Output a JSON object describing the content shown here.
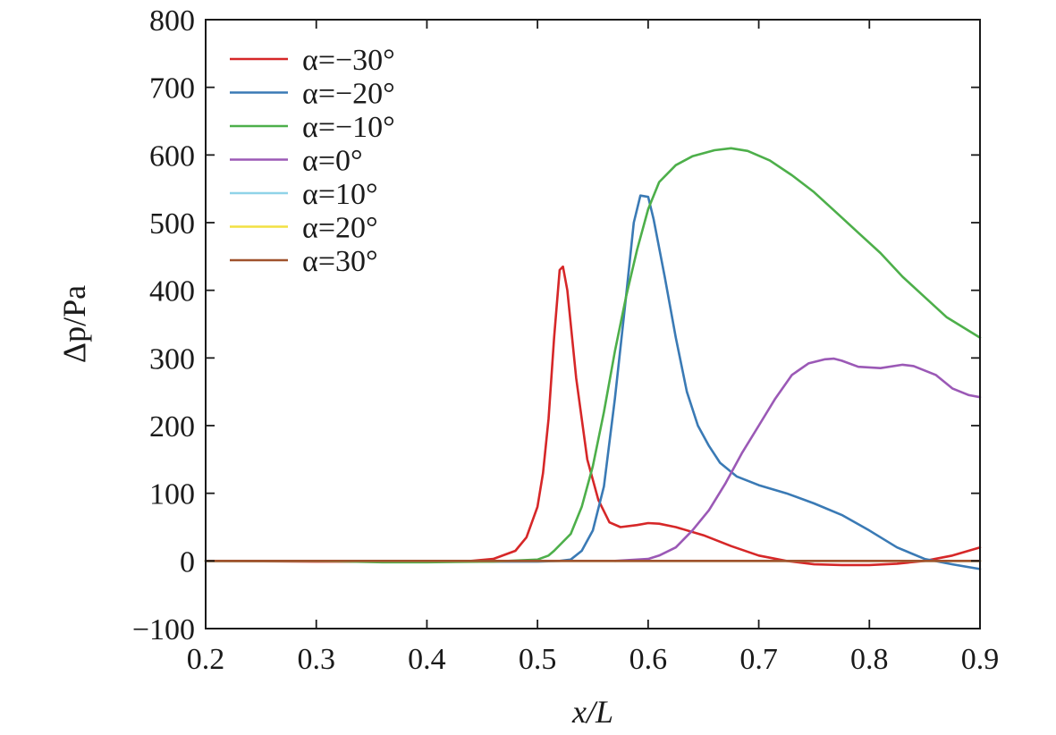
{
  "chart_data": {
    "type": "line",
    "title": "",
    "xlabel": "x/L",
    "ylabel": "Δp/Pa",
    "xlim": [
      0.2,
      0.9
    ],
    "ylim": [
      -100,
      800
    ],
    "x_ticks": [
      0.2,
      0.3,
      0.4,
      0.5,
      0.6,
      0.7,
      0.8,
      0.9
    ],
    "x_tick_labels": [
      "0.2",
      "0.3",
      "0.4",
      "0.5",
      "0.6",
      "0.7",
      "0.8",
      "0.9"
    ],
    "y_ticks": [
      -100,
      0,
      100,
      200,
      300,
      400,
      500,
      600,
      700,
      800
    ],
    "y_tick_labels": [
      "−100",
      "0",
      "100",
      "200",
      "300",
      "400",
      "500",
      "600",
      "700",
      "800"
    ],
    "grid": false,
    "legend_position": "top-left",
    "series": [
      {
        "name": "α=−30°",
        "color": "#d62728",
        "points": [
          [
            0.2,
            0
          ],
          [
            0.3,
            -1
          ],
          [
            0.4,
            -1
          ],
          [
            0.44,
            0
          ],
          [
            0.46,
            3
          ],
          [
            0.48,
            15
          ],
          [
            0.49,
            35
          ],
          [
            0.5,
            80
          ],
          [
            0.505,
            130
          ],
          [
            0.51,
            210
          ],
          [
            0.515,
            330
          ],
          [
            0.52,
            430
          ],
          [
            0.523,
            435
          ],
          [
            0.527,
            400
          ],
          [
            0.535,
            270
          ],
          [
            0.545,
            150
          ],
          [
            0.555,
            90
          ],
          [
            0.565,
            57
          ],
          [
            0.575,
            50
          ],
          [
            0.59,
            53
          ],
          [
            0.6,
            56
          ],
          [
            0.61,
            55
          ],
          [
            0.625,
            50
          ],
          [
            0.65,
            38
          ],
          [
            0.675,
            22
          ],
          [
            0.7,
            8
          ],
          [
            0.725,
            0
          ],
          [
            0.75,
            -5
          ],
          [
            0.775,
            -6
          ],
          [
            0.8,
            -6
          ],
          [
            0.825,
            -4
          ],
          [
            0.85,
            0
          ],
          [
            0.875,
            8
          ],
          [
            0.9,
            20
          ]
        ]
      },
      {
        "name": "α=−20°",
        "color": "#3a7ab5",
        "points": [
          [
            0.2,
            0
          ],
          [
            0.3,
            0
          ],
          [
            0.4,
            -1
          ],
          [
            0.5,
            -1
          ],
          [
            0.52,
            0
          ],
          [
            0.53,
            2
          ],
          [
            0.54,
            15
          ],
          [
            0.55,
            45
          ],
          [
            0.56,
            110
          ],
          [
            0.57,
            240
          ],
          [
            0.58,
            390
          ],
          [
            0.587,
            500
          ],
          [
            0.593,
            540
          ],
          [
            0.6,
            538
          ],
          [
            0.605,
            505
          ],
          [
            0.615,
            420
          ],
          [
            0.625,
            330
          ],
          [
            0.635,
            250
          ],
          [
            0.645,
            200
          ],
          [
            0.655,
            170
          ],
          [
            0.665,
            145
          ],
          [
            0.68,
            125
          ],
          [
            0.7,
            112
          ],
          [
            0.725,
            100
          ],
          [
            0.75,
            85
          ],
          [
            0.775,
            68
          ],
          [
            0.8,
            45
          ],
          [
            0.825,
            20
          ],
          [
            0.85,
            3
          ],
          [
            0.875,
            -5
          ],
          [
            0.9,
            -12
          ]
        ]
      },
      {
        "name": "α=−10°",
        "color": "#4daf4a",
        "points": [
          [
            0.2,
            0
          ],
          [
            0.3,
            0
          ],
          [
            0.36,
            -2
          ],
          [
            0.4,
            -2
          ],
          [
            0.46,
            -1
          ],
          [
            0.5,
            2
          ],
          [
            0.51,
            8
          ],
          [
            0.515,
            15
          ],
          [
            0.53,
            40
          ],
          [
            0.54,
            80
          ],
          [
            0.55,
            140
          ],
          [
            0.56,
            220
          ],
          [
            0.57,
            310
          ],
          [
            0.58,
            390
          ],
          [
            0.59,
            460
          ],
          [
            0.6,
            520
          ],
          [
            0.61,
            560
          ],
          [
            0.625,
            585
          ],
          [
            0.64,
            598
          ],
          [
            0.66,
            607
          ],
          [
            0.675,
            610
          ],
          [
            0.69,
            606
          ],
          [
            0.71,
            592
          ],
          [
            0.73,
            570
          ],
          [
            0.75,
            545
          ],
          [
            0.77,
            515
          ],
          [
            0.79,
            485
          ],
          [
            0.81,
            455
          ],
          [
            0.83,
            420
          ],
          [
            0.85,
            390
          ],
          [
            0.87,
            360
          ],
          [
            0.9,
            330
          ]
        ]
      },
      {
        "name": "α=0°",
        "color": "#9b59b6",
        "points": [
          [
            0.57,
            0
          ],
          [
            0.58,
            1
          ],
          [
            0.6,
            3
          ],
          [
            0.61,
            8
          ],
          [
            0.625,
            20
          ],
          [
            0.64,
            45
          ],
          [
            0.655,
            75
          ],
          [
            0.67,
            115
          ],
          [
            0.685,
            160
          ],
          [
            0.7,
            200
          ],
          [
            0.715,
            240
          ],
          [
            0.73,
            275
          ],
          [
            0.745,
            292
          ],
          [
            0.76,
            298
          ],
          [
            0.768,
            299
          ],
          [
            0.775,
            296
          ],
          [
            0.79,
            287
          ],
          [
            0.81,
            285
          ],
          [
            0.83,
            290
          ],
          [
            0.84,
            288
          ],
          [
            0.86,
            275
          ],
          [
            0.875,
            255
          ],
          [
            0.89,
            245
          ],
          [
            0.9,
            242
          ]
        ]
      },
      {
        "name": "α=10°",
        "color": "#8fd3e8",
        "points": [
          [
            0.2,
            0
          ],
          [
            0.9,
            0
          ]
        ]
      },
      {
        "name": "α=20°",
        "color": "#f2e142",
        "points": [
          [
            0.2,
            0
          ],
          [
            0.9,
            0
          ]
        ]
      },
      {
        "name": "α=30°",
        "color": "#a0522d",
        "points": [
          [
            0.2,
            0
          ],
          [
            0.3,
            0
          ],
          [
            0.4,
            0
          ],
          [
            0.5,
            0
          ],
          [
            0.6,
            0
          ],
          [
            0.7,
            0
          ],
          [
            0.8,
            0
          ],
          [
            0.9,
            0
          ]
        ]
      }
    ]
  }
}
